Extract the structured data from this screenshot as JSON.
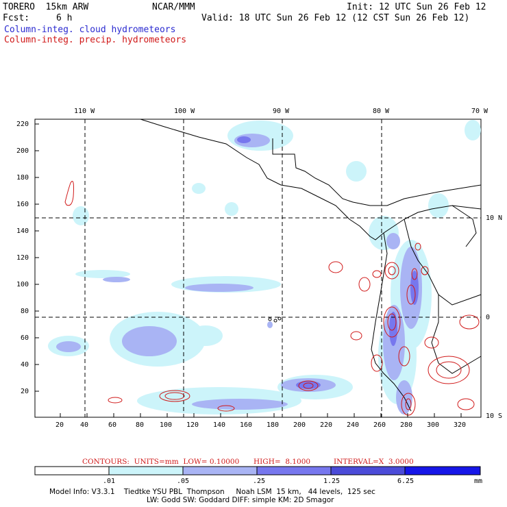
{
  "header": {
    "model_line": "TORERO  15km ARW",
    "org": "NCAR/MMM",
    "init": "Init: 12 UTC Sun 26 Feb 12",
    "fcst_label": "Fcst:",
    "fcst_value": "6 h",
    "valid": "Valid: 18 UTC Sun 26 Feb 12 (12 CST Sun 26 Feb 12)",
    "field_cloud": "Column-integ. cloud hydrometeors",
    "field_precip": "Column-integ. precip. hydrometeors"
  },
  "colors": {
    "cloud_text": "#2a2ad0",
    "precip": "#d01818",
    "scale": [
      "#ffffff",
      "#ccf4fa",
      "#a9b4f4",
      "#7777ee",
      "#4b4bd8",
      "#1616e8"
    ]
  },
  "map": {
    "top_labels": [
      "110 W",
      "100 W",
      "90 W",
      "80 W",
      "70 W"
    ],
    "right_labels": [
      "10 N",
      "0",
      "10 S"
    ],
    "y_ticks": [
      "220",
      "200",
      "180",
      "160",
      "140",
      "120",
      "100",
      "80",
      "60",
      "40",
      "20"
    ],
    "x_ticks": [
      "20",
      "40",
      "60",
      "80",
      "100",
      "120",
      "140",
      "160",
      "180",
      "200",
      "220",
      "240",
      "260",
      "280",
      "300",
      "320"
    ]
  },
  "contours": {
    "units": "CONTOURS:  UNITS=mm  LOW= 0.10000",
    "high": "HIGH=  8.1000",
    "interval": "INTERVAL=X  3.0000"
  },
  "colorbar": {
    "labels": [
      ".01",
      ".05",
      ".25",
      "1.25",
      "6.25"
    ],
    "unit": "mm"
  },
  "footer": {
    "line1": "Model Info: V3.3.1    Tiedtke YSU PBL  Thompson     Noah LSM  15 km,   44 levels,  125 sec",
    "line2": "LW: Godd SW: Goddard DIFF: simple KM: 2D Smagor"
  }
}
